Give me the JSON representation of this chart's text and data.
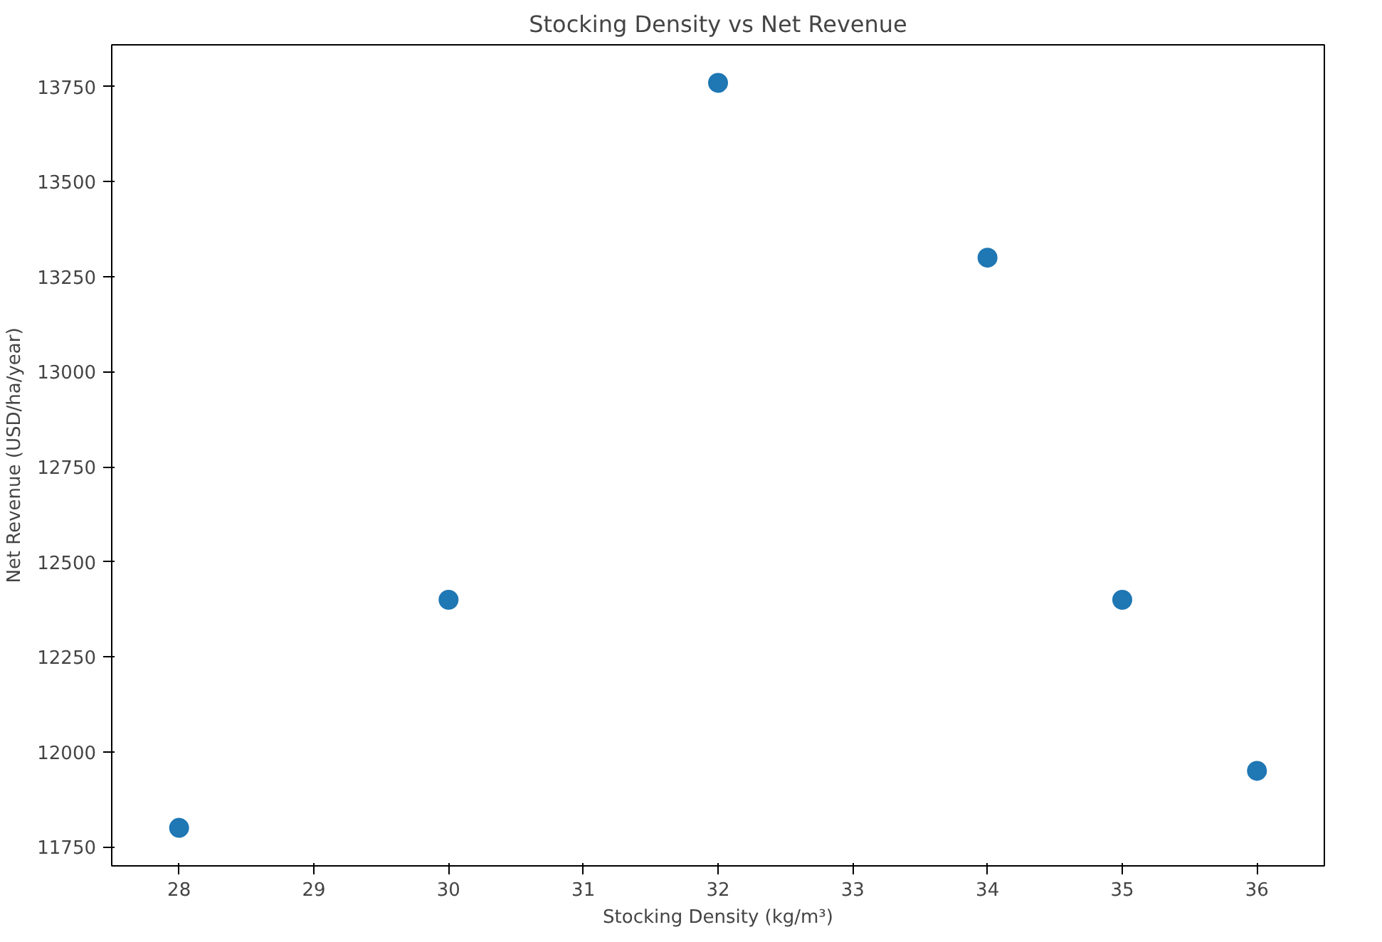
{
  "chart_data": {
    "type": "scatter",
    "title": "Stocking Density vs Net Revenue",
    "xlabel": "Stocking Density (kg/m³)",
    "ylabel": "Net Revenue (USD/ha/year)",
    "x": [
      28,
      30,
      32,
      34,
      35,
      36
    ],
    "series": [
      {
        "color": "#1f77b4",
        "values": [
          11800,
          12400,
          13760,
          13300,
          12400,
          11950
        ]
      }
    ],
    "xlim": [
      27.5,
      36.5
    ],
    "ylim": [
      11700,
      13860
    ],
    "xticks": [
      28,
      29,
      30,
      31,
      32,
      33,
      34,
      35,
      36
    ],
    "yticks": [
      11750,
      12000,
      12250,
      12500,
      12750,
      13000,
      13250,
      13500,
      13750
    ],
    "marker": "circle",
    "grid": false
  }
}
